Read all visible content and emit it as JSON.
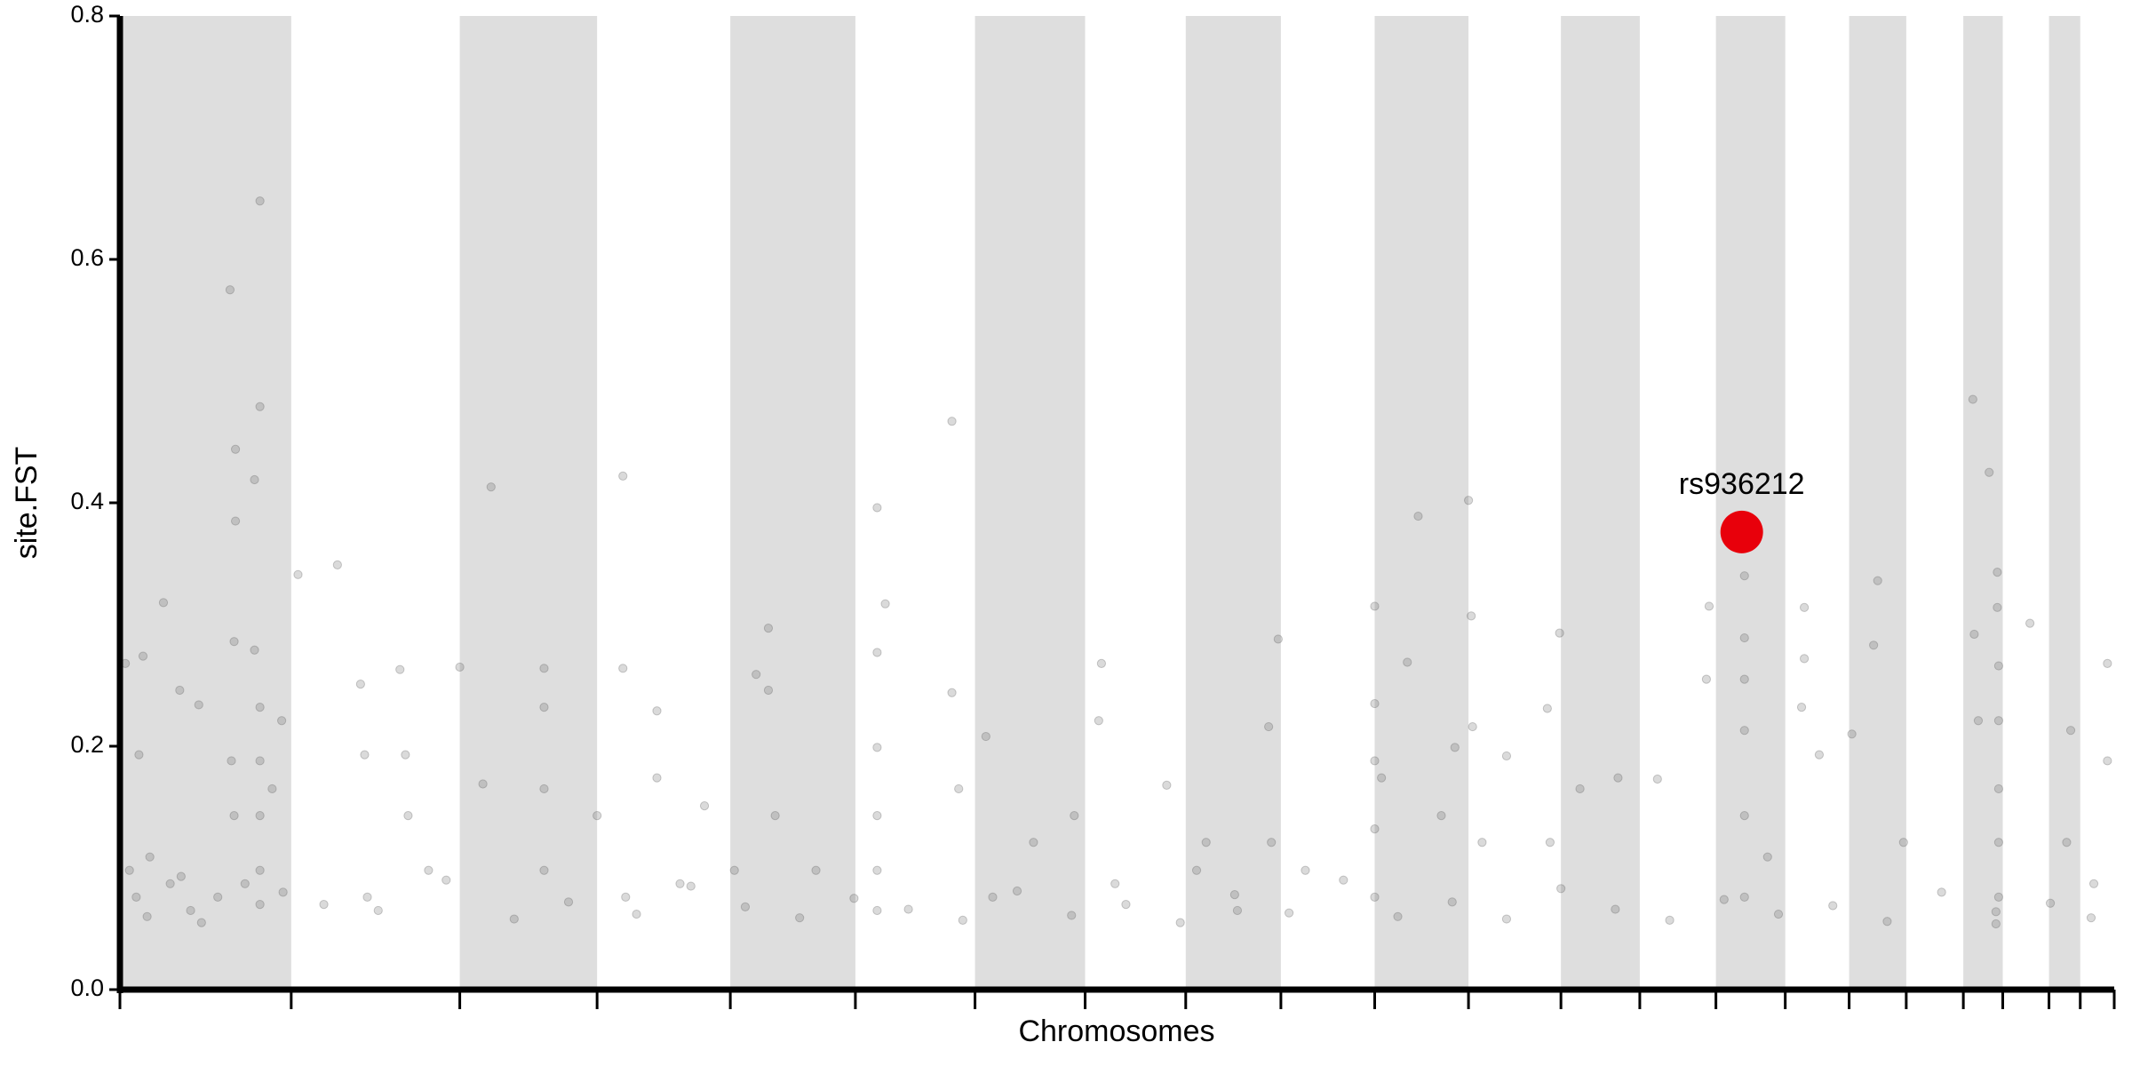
{
  "chart_data": {
    "type": "scatter",
    "xlabel": "Chromosomes",
    "ylabel": "site.FST",
    "xlim": [
      0,
      1467
    ],
    "ylim": [
      0,
      0.8
    ],
    "yticks": [
      {
        "value": 0,
        "label": "0.0"
      },
      0.2,
      0.4,
      0.6,
      0.8
    ],
    "chromosome_boundaries": [
      0,
      126,
      250,
      351,
      449,
      541,
      629,
      710,
      784,
      854,
      923,
      992,
      1060,
      1118,
      1174,
      1225,
      1272,
      1314,
      1356,
      1385,
      1419,
      1442,
      1467
    ],
    "band_color": "#dedede",
    "color": "#555555",
    "x": [
      4,
      17,
      14,
      32,
      44,
      58,
      7,
      12,
      22,
      37,
      45,
      52,
      72,
      81,
      85,
      85,
      84,
      99,
      99,
      103,
      103,
      103,
      103,
      103,
      103,
      103,
      112,
      119,
      82,
      84,
      92,
      131,
      160,
      177,
      180,
      182,
      206,
      210,
      212,
      227,
      250,
      267,
      273,
      312,
      312,
      312,
      312,
      351,
      370,
      370,
      395,
      395,
      372,
      412,
      430,
      452,
      468,
      477,
      477,
      482,
      512,
      557,
      557,
      557,
      557,
      557,
      557,
      563,
      612,
      612,
      617,
      637,
      642,
      672,
      702,
      722,
      720,
      732,
      770,
      792,
      799,
      822,
      852,
      845,
      847,
      872,
      923,
      923,
      923,
      923,
      923,
      928,
      947,
      955,
      972,
      982,
      992,
      994,
      995,
      1002,
      1020,
      1050,
      1059,
      1052,
      1074,
      1102,
      1131,
      1169,
      1167,
      1195,
      1195,
      1195,
      1195,
      1195,
      1195,
      1212,
      1239,
      1239,
      1237,
      1250,
      1274,
      1293,
      1290,
      1312,
      1363,
      1375,
      1364,
      1367,
      1381,
      1381,
      1382,
      1382,
      1382,
      1382,
      1382,
      1380,
      1405,
      1435,
      1462,
      1462,
      1452,
      1432,
      20,
      60,
      120,
      150,
      190,
      240,
      290,
      330,
      380,
      420,
      460,
      500,
      540,
      580,
      620,
      660,
      700,
      740,
      780,
      820,
      860,
      900,
      940,
      980,
      1020,
      1060,
      1100,
      1140,
      1180,
      1220,
      1260,
      1300,
      1340,
      1380,
      1420,
      1450
    ],
    "values": [
      0.268,
      0.274,
      0.193,
      0.318,
      0.246,
      0.234,
      0.098,
      0.076,
      0.109,
      0.087,
      0.093,
      0.065,
      0.076,
      0.575,
      0.444,
      0.385,
      0.286,
      0.419,
      0.279,
      0.648,
      0.479,
      0.232,
      0.188,
      0.143,
      0.098,
      0.07,
      0.165,
      0.221,
      0.188,
      0.143,
      0.087,
      0.341,
      0.349,
      0.251,
      0.193,
      0.076,
      0.263,
      0.193,
      0.143,
      0.098,
      0.265,
      0.169,
      0.413,
      0.264,
      0.232,
      0.165,
      0.098,
      0.143,
      0.422,
      0.264,
      0.229,
      0.174,
      0.076,
      0.087,
      0.151,
      0.098,
      0.259,
      0.297,
      0.246,
      0.143,
      0.098,
      0.396,
      0.277,
      0.199,
      0.143,
      0.098,
      0.065,
      0.317,
      0.467,
      0.244,
      0.165,
      0.208,
      0.076,
      0.121,
      0.143,
      0.268,
      0.221,
      0.087,
      0.168,
      0.098,
      0.121,
      0.065,
      0.288,
      0.216,
      0.121,
      0.098,
      0.315,
      0.235,
      0.188,
      0.132,
      0.076,
      0.174,
      0.269,
      0.389,
      0.143,
      0.199,
      0.402,
      0.307,
      0.216,
      0.121,
      0.192,
      0.231,
      0.293,
      0.121,
      0.165,
      0.174,
      0.173,
      0.315,
      0.255,
      0.34,
      0.289,
      0.255,
      0.213,
      0.143,
      0.076,
      0.109,
      0.314,
      0.272,
      0.232,
      0.193,
      0.21,
      0.336,
      0.283,
      0.121,
      0.485,
      0.425,
      0.292,
      0.221,
      0.343,
      0.314,
      0.266,
      0.221,
      0.165,
      0.121,
      0.076,
      0.054,
      0.301,
      0.213,
      0.268,
      0.188,
      0.087,
      0.121,
      0.06,
      0.055,
      0.08,
      0.07,
      0.065,
      0.09,
      0.058,
      0.072,
      0.062,
      0.085,
      0.068,
      0.059,
      0.075,
      0.066,
      0.057,
      0.081,
      0.061,
      0.07,
      0.055,
      0.078,
      0.063,
      0.09,
      0.06,
      0.072,
      0.058,
      0.083,
      0.066,
      0.057,
      0.074,
      0.062,
      0.069,
      0.056,
      0.08,
      0.064,
      0.071,
      0.059
    ],
    "highlight": {
      "label": "rs936212",
      "x": 1193,
      "value": 0.376,
      "color": "#e8000b"
    }
  }
}
